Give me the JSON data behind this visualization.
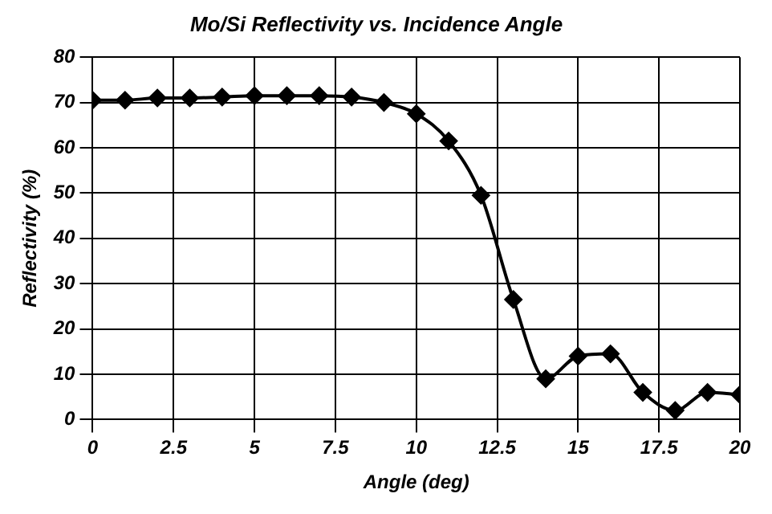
{
  "chart_data": {
    "type": "line",
    "title": "Mo/Si Reflectivity vs. Incidence Angle",
    "xlabel": "Angle (deg)",
    "ylabel": "Reflectivity (%)",
    "x": [
      0,
      1,
      2,
      3,
      4,
      5,
      6,
      7,
      8,
      9,
      10,
      11,
      12,
      13,
      14,
      15,
      16,
      17,
      18,
      19,
      20
    ],
    "series": [
      {
        "color": "#000000",
        "values": [
          70.5,
          70.5,
          71,
          71,
          71.2,
          71.5,
          71.5,
          71.5,
          71.2,
          70,
          67.5,
          61.5,
          49.5,
          26.5,
          9,
          14,
          14.5,
          6,
          2,
          6,
          5.5
        ]
      }
    ],
    "xlim": [
      0,
      20
    ],
    "xticks": [
      0,
      2.5,
      5,
      7.5,
      10,
      12.5,
      15,
      17.5,
      20
    ],
    "ylim": [
      0,
      80
    ],
    "yticks": [
      0,
      10,
      20,
      30,
      40,
      50,
      60,
      70,
      80
    ],
    "grid": true,
    "legend": false,
    "marker": "diamond",
    "line_style": "solid"
  }
}
